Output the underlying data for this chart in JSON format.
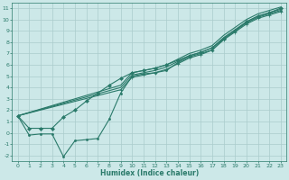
{
  "xlabel": "Humidex (Indice chaleur)",
  "bg_color": "#cce8e8",
  "grid_color": "#aacccc",
  "line_color": "#2a7a6a",
  "xlim": [
    -0.5,
    23.5
  ],
  "ylim": [
    -2.5,
    11.5
  ],
  "xticks": [
    0,
    1,
    2,
    3,
    4,
    5,
    6,
    7,
    8,
    9,
    10,
    11,
    12,
    13,
    14,
    15,
    16,
    17,
    18,
    19,
    20,
    21,
    22,
    23
  ],
  "yticks": [
    -2,
    -1,
    0,
    1,
    2,
    3,
    4,
    5,
    6,
    7,
    8,
    9,
    10,
    11
  ],
  "series": [
    {
      "x": [
        0,
        1,
        2,
        3,
        4,
        5,
        6,
        7,
        8,
        9,
        10,
        11,
        12,
        13,
        14,
        15,
        16,
        17,
        18,
        19,
        20,
        21,
        22,
        23
      ],
      "y": [
        1.5,
        0.4,
        0.4,
        0.4,
        1.4,
        2.0,
        2.8,
        3.5,
        4.2,
        4.8,
        5.3,
        5.5,
        5.7,
        6.0,
        6.4,
        6.8,
        7.1,
        7.5,
        8.3,
        9.0,
        9.8,
        10.3,
        10.6,
        11.0
      ],
      "marker": "D",
      "markersize": 2.0,
      "linewidth": 0.8
    },
    {
      "x": [
        0,
        1,
        2,
        3,
        4,
        5,
        6,
        7,
        8,
        9,
        10,
        11,
        12,
        13,
        14,
        15,
        16,
        17,
        18,
        19,
        20,
        21,
        22,
        23
      ],
      "y": [
        1.5,
        -0.2,
        -0.1,
        -0.1,
        -2.1,
        -0.7,
        -0.6,
        -0.5,
        1.2,
        3.5,
        5.0,
        5.2,
        5.3,
        5.5,
        6.2,
        6.7,
        7.0,
        7.3,
        8.3,
        9.0,
        9.7,
        10.2,
        10.5,
        10.8
      ],
      "marker": "o",
      "markersize": 1.5,
      "linewidth": 0.8
    },
    {
      "x": [
        0,
        9,
        10,
        11,
        12,
        13,
        14,
        15,
        16,
        17,
        18,
        19,
        20,
        21,
        22,
        23
      ],
      "y": [
        1.5,
        4.2,
        5.3,
        5.5,
        5.7,
        6.0,
        6.5,
        7.0,
        7.3,
        7.7,
        8.6,
        9.3,
        10.0,
        10.5,
        10.8,
        11.1
      ],
      "marker": null,
      "markersize": 0,
      "linewidth": 0.8
    },
    {
      "x": [
        0,
        9,
        10,
        11,
        12,
        13,
        14,
        15,
        16,
        17,
        18,
        19,
        20,
        21,
        22,
        23
      ],
      "y": [
        1.5,
        4.0,
        5.1,
        5.3,
        5.5,
        5.8,
        6.3,
        6.8,
        7.1,
        7.5,
        8.4,
        9.1,
        9.8,
        10.3,
        10.6,
        10.9
      ],
      "marker": null,
      "markersize": 0,
      "linewidth": 0.8
    },
    {
      "x": [
        0,
        9,
        10,
        11,
        12,
        13,
        14,
        15,
        16,
        17,
        18,
        19,
        20,
        21,
        22,
        23
      ],
      "y": [
        1.5,
        3.8,
        4.9,
        5.1,
        5.3,
        5.6,
        6.1,
        6.6,
        6.9,
        7.3,
        8.2,
        8.9,
        9.6,
        10.1,
        10.4,
        10.7
      ],
      "marker": "+",
      "markersize": 3.0,
      "linewidth": 0.8
    }
  ]
}
